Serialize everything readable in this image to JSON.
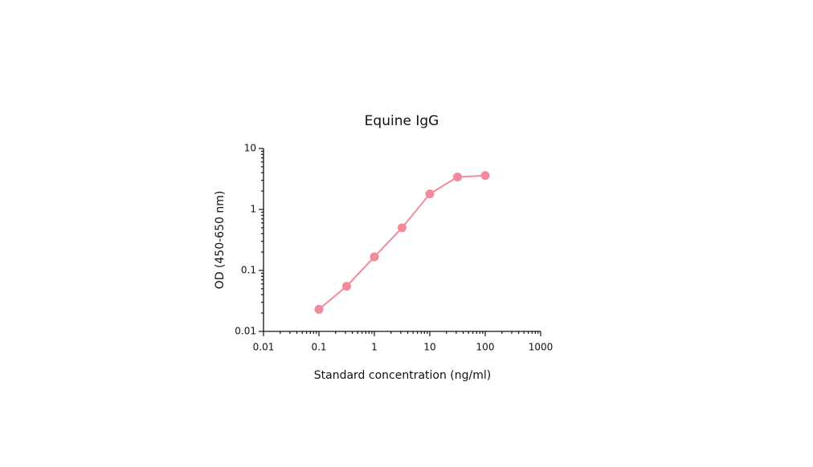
{
  "chart_data": {
    "type": "line",
    "title": "Equine IgG",
    "x_label": "Standard concentration (ng/ml)",
    "y_label": "OD (450-650 nm)",
    "x": [
      0.1,
      0.316,
      1,
      3.16,
      10,
      31.6,
      100
    ],
    "series": [
      {
        "color": "#f4899b",
        "values": [
          0.023,
          0.055,
          0.167,
          0.5,
          1.8,
          3.4,
          3.6
        ]
      }
    ],
    "xscale": "log",
    "yscale": "log",
    "xlim": [
      0.01,
      1000
    ],
    "xticks": [
      0.01,
      0.1,
      1,
      10,
      100,
      1000
    ],
    "ylim": [
      0.01,
      10
    ],
    "yticks": [
      0.01,
      0.1,
      1,
      10
    ]
  }
}
